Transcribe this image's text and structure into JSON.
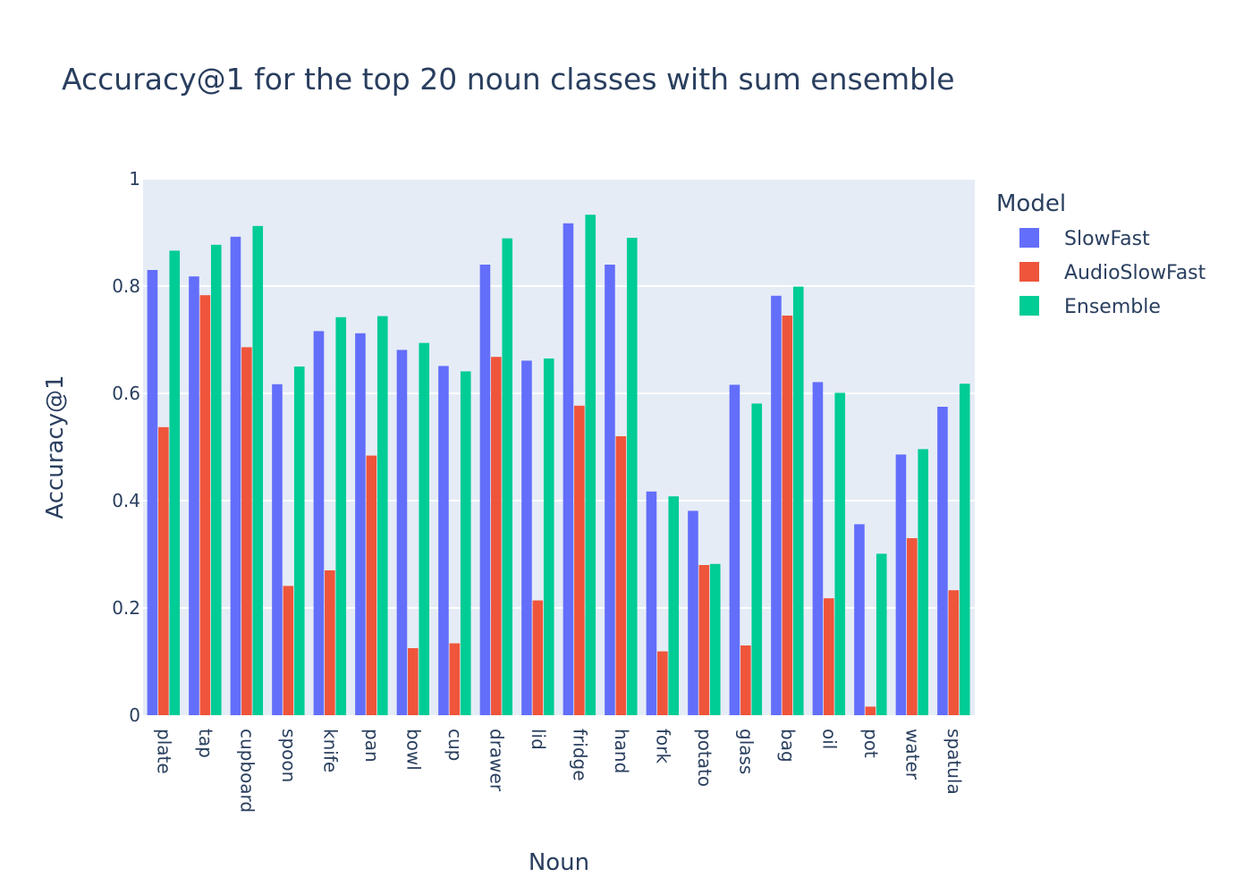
{
  "chart_data": {
    "type": "bar",
    "title": "Accuracy@1 for the top 20 noun classes with sum ensemble",
    "xlabel": "Noun",
    "ylabel": "Accuracy@1",
    "ylim": [
      0,
      1
    ],
    "yticks": [
      0,
      0.2,
      0.4,
      0.6,
      0.8,
      1
    ],
    "ytick_labels": [
      "0",
      "0.2",
      "0.4",
      "0.6",
      "0.8",
      "1"
    ],
    "grid": true,
    "legend_title": "Model",
    "legend_position": "right",
    "categories": [
      "plate",
      "tap",
      "cupboard",
      "spoon",
      "knife",
      "pan",
      "bowl",
      "cup",
      "drawer",
      "lid",
      "fridge",
      "hand",
      "fork",
      "potato",
      "glass",
      "bag",
      "oil",
      "pot",
      "water",
      "spatula"
    ],
    "series": [
      {
        "name": "SlowFast",
        "color": "#636efa",
        "values": [
          0.83,
          0.818,
          0.892,
          0.617,
          0.716,
          0.712,
          0.681,
          0.651,
          0.84,
          0.661,
          0.917,
          0.84,
          0.417,
          0.381,
          0.616,
          0.782,
          0.621,
          0.356,
          0.486,
          0.575
        ]
      },
      {
        "name": "AudioSlowFast",
        "color": "#ef553b",
        "values": [
          0.537,
          0.783,
          0.686,
          0.241,
          0.27,
          0.484,
          0.125,
          0.134,
          0.668,
          0.214,
          0.577,
          0.52,
          0.119,
          0.28,
          0.13,
          0.745,
          0.218,
          0.016,
          0.33,
          0.233
        ]
      },
      {
        "name": "Ensemble",
        "color": "#00cc96",
        "values": [
          0.866,
          0.877,
          0.912,
          0.65,
          0.742,
          0.744,
          0.694,
          0.641,
          0.889,
          0.665,
          0.933,
          0.89,
          0.408,
          0.282,
          0.581,
          0.799,
          0.601,
          0.301,
          0.496,
          0.618
        ]
      }
    ]
  }
}
